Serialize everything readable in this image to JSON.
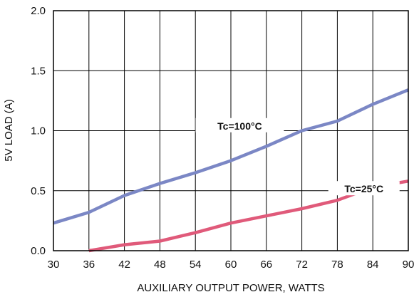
{
  "chart_data": {
    "type": "line",
    "xlabel": "AUXILIARY OUTPUT POWER, WATTS",
    "ylabel": "5V LOAD (A)",
    "xlim": [
      30,
      90
    ],
    "ylim": [
      0,
      2.0
    ],
    "x_ticks": [
      "30",
      "36",
      "42",
      "48",
      "54",
      "60",
      "66",
      "72",
      "78",
      "84",
      "90"
    ],
    "y_ticks": [
      "0.0",
      "0.5",
      "1.0",
      "1.5",
      "2.0"
    ],
    "grid": true,
    "legend": "inline labels",
    "series": [
      {
        "name": "Tc=100°C",
        "color": "#7b87c5",
        "x": [
          30,
          36,
          42,
          48,
          54,
          60,
          66,
          72,
          78,
          84,
          90
        ],
        "y": [
          0.23,
          0.32,
          0.46,
          0.56,
          0.65,
          0.75,
          0.87,
          1.0,
          1.08,
          1.22,
          1.34
        ]
      },
      {
        "name": "Tc=25°C",
        "color": "#e05a7a",
        "x": [
          36,
          42,
          48,
          54,
          60,
          66,
          72,
          78,
          84,
          90
        ],
        "y": [
          0.0,
          0.05,
          0.08,
          0.15,
          0.23,
          0.29,
          0.35,
          0.42,
          0.53,
          0.58
        ]
      }
    ]
  }
}
